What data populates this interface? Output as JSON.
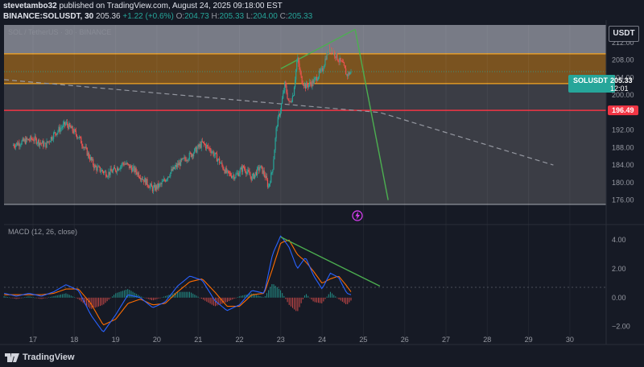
{
  "header": {
    "author": "stevetambo32",
    "published_text": "published on TradingView.com, August 24, 2025 09:18:00 EST",
    "symbol": "BINANCE:SOLUSDT, 30",
    "last": "205.36",
    "change": "+1.22 (+0.6%)",
    "o_label": "O:",
    "o_value": "204.73",
    "h_label": "H:",
    "h_value": "205.33",
    "l_label": "L:",
    "l_value": "204.00",
    "c_label": "C:",
    "c_value": "205.33"
  },
  "watermark": "SOL / TetherUS · 30 · BINANCE",
  "currency_button": "USDT",
  "price_tag": {
    "symbol": "SOLUSDT",
    "price": "205.33",
    "countdown": "12:01"
  },
  "level_tag": "196.49",
  "macd_label": "MACD (12, 26, close)",
  "brand": "TradingView",
  "colors": {
    "up": "#26a69a",
    "down": "#ef5350",
    "supply_zone": "#f5a623",
    "support_line": "#f23645",
    "trend_line": "#4caf50",
    "macd_line": "#2962ff",
    "signal_line": "#ff6d00"
  },
  "chart_data": [
    {
      "type": "candlestick",
      "title": "BINANCE:SOLUSDT, 30",
      "x_ticks": [
        "17",
        "18",
        "19",
        "20",
        "21",
        "22",
        "23",
        "24",
        "25",
        "26",
        "27",
        "28",
        "29",
        "30"
      ],
      "y_ticks": [
        176,
        180,
        184,
        188,
        192,
        196,
        200,
        204,
        208,
        212
      ],
      "ylim": [
        175,
        216
      ],
      "series": [
        {
          "name": "SOLUSDT",
          "x": [
            16.5,
            16.8,
            17.0,
            17.3,
            17.5,
            17.8,
            17.9,
            18.1,
            18.3,
            18.5,
            18.8,
            19.0,
            19.2,
            19.5,
            19.7,
            19.9,
            20.1,
            20.3,
            20.5,
            20.7,
            20.9,
            21.1,
            21.3,
            21.5,
            21.7,
            21.9,
            22.1,
            22.3,
            22.5,
            22.6,
            22.7,
            22.8,
            22.9,
            23.0,
            23.1,
            23.2,
            23.3,
            23.4,
            23.5,
            23.6,
            23.8,
            23.9,
            24.0,
            24.1,
            24.2,
            24.3,
            24.4,
            24.5,
            24.6,
            24.7
          ],
          "close": [
            188.5,
            189.5,
            190.0,
            188.5,
            191.0,
            193.5,
            192.5,
            190.5,
            187.0,
            183.5,
            182.0,
            183.0,
            184.5,
            182.5,
            180.5,
            178.5,
            179.5,
            182.0,
            184.0,
            185.5,
            187.0,
            189.0,
            187.5,
            185.0,
            182.0,
            181.5,
            183.5,
            181.0,
            183.5,
            182.0,
            179.0,
            183.0,
            193.0,
            197.0,
            202.5,
            198.0,
            200.0,
            208.5,
            203.5,
            202.0,
            203.0,
            204.5,
            205.5,
            209.0,
            211.0,
            209.5,
            208.0,
            207.0,
            204.5,
            205.33
          ]
        }
      ],
      "zones": [
        {
          "name": "supply",
          "from": 202.6,
          "to": 209.4
        }
      ],
      "levels": [
        {
          "value": 196.49
        }
      ],
      "trendlines": [
        {
          "name": "falling dashed",
          "points": [
            [
              16.3,
              203.5
            ],
            [
              25.4,
              196.0
            ],
            [
              29.6,
              184.0
            ]
          ]
        },
        {
          "name": "rising upper",
          "points": [
            [
              23.0,
              206.0
            ],
            [
              24.8,
              215.0
            ]
          ]
        },
        {
          "name": "projection",
          "points": [
            [
              24.8,
              215.0
            ],
            [
              25.6,
              176.0
            ]
          ]
        }
      ]
    },
    {
      "type": "line",
      "title": "MACD (12, 26, close)",
      "y_ticks": [
        -2.0,
        0.0,
        2.0,
        4.0
      ],
      "ylim": [
        -2.8,
        4.9
      ],
      "x": [
        16.3,
        16.6,
        16.9,
        17.2,
        17.5,
        17.8,
        18.1,
        18.4,
        18.7,
        19.0,
        19.3,
        19.6,
        19.9,
        20.2,
        20.5,
        20.8,
        21.1,
        21.4,
        21.7,
        22.0,
        22.3,
        22.6,
        22.8,
        23.0,
        23.2,
        23.4,
        23.6,
        23.8,
        24.0,
        24.2,
        24.4,
        24.6,
        24.7
      ],
      "series": [
        {
          "name": "MACD",
          "values": [
            0.3,
            0.1,
            0.3,
            0.1,
            0.4,
            0.9,
            0.5,
            -1.2,
            -2.4,
            -1.2,
            0.2,
            0.0,
            -0.7,
            -0.3,
            0.8,
            1.5,
            1.2,
            -0.2,
            -0.9,
            -0.5,
            0.5,
            0.3,
            3.0,
            4.3,
            3.5,
            2.0,
            2.8,
            1.5,
            0.6,
            1.7,
            1.4,
            0.3,
            0.2
          ]
        },
        {
          "name": "Signal",
          "values": [
            0.2,
            0.2,
            0.2,
            0.2,
            0.3,
            0.6,
            0.6,
            -0.4,
            -1.9,
            -1.5,
            -0.4,
            -0.1,
            -0.5,
            -0.4,
            0.4,
            1.1,
            1.3,
            0.4,
            -0.6,
            -0.6,
            0.2,
            0.3,
            2.0,
            3.8,
            4.0,
            3.0,
            2.5,
            1.8,
            1.0,
            1.3,
            1.5,
            0.8,
            0.4
          ]
        }
      ],
      "trendlines": [
        {
          "name": "bearish divergence",
          "points": [
            [
              23.0,
              4.2
            ],
            [
              25.4,
              0.8
            ]
          ]
        }
      ]
    }
  ]
}
